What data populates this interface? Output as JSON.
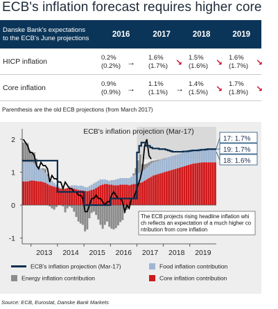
{
  "title": "ECB's inflation forecast requires higher core",
  "table": {
    "header_label_line1": "Danske Bank's expectations",
    "header_label_line2": "to the ECB's June projections",
    "years": [
      "2016",
      "2017",
      "2018",
      "2019"
    ],
    "rows": [
      {
        "label": "HICP inflation",
        "cells": [
          {
            "new": "0.2%",
            "old": "(0.2%)",
            "arrow": "right"
          },
          {
            "new": "1.6%",
            "old": "(1.7%)",
            "arrow": "down"
          },
          {
            "new": "1.5%",
            "old": "(1.6%)",
            "arrow": "down"
          },
          {
            "new": "1.6%",
            "old": "(1.7%)",
            "arrow": "down"
          }
        ]
      },
      {
        "label": "Core inflation",
        "cells": [
          {
            "new": "0.9%",
            "old": "(0.9%)",
            "arrow": "right"
          },
          {
            "new": "1.1%",
            "old": "(1.1%)",
            "arrow": "right"
          },
          {
            "new": "1.4%",
            "old": "(1.5%)",
            "arrow": "down"
          },
          {
            "new": "1.7%",
            "old": "(1.8%)",
            "arrow": "down"
          }
        ]
      }
    ]
  },
  "note": "Parenthesis are the old ECB projections (from March 2017)",
  "source": "Source: ECB, Eurostat, Danske Bank Markets",
  "colors": {
    "header_bg": "#0b3558",
    "food": "#9fb6d3",
    "energy": "#8c8c8c",
    "core": "#d0191b",
    "projection_line": "#0b2e4f",
    "hicp_line": "#000000",
    "arrow_down": "#c8102e"
  },
  "chart_data": {
    "type": "bar",
    "title": "ECB's inflation projection (Mar-17)",
    "xlabel": "",
    "ylabel": "",
    "x_ticks": [
      "2013",
      "2014",
      "2015",
      "2016",
      "2017",
      "2018",
      "2019"
    ],
    "y_ticks": [
      "-1",
      "0",
      "1",
      "2"
    ],
    "ylim": [
      -1.1,
      2.1
    ],
    "grid": false,
    "legend_position": "bottom",
    "stacked": true,
    "x_start_month": "2012-09",
    "series": [
      {
        "name": "Core inflation contribution",
        "type": "bar",
        "values": [
          0.72,
          0.72,
          0.72,
          0.74,
          0.75,
          0.74,
          0.73,
          0.72,
          0.72,
          0.7,
          0.68,
          0.64,
          0.6,
          0.58,
          0.56,
          0.54,
          0.52,
          0.5,
          0.5,
          0.5,
          0.52,
          0.54,
          0.52,
          0.5,
          0.48,
          0.46,
          0.45,
          0.44,
          0.43,
          0.42,
          0.44,
          0.46,
          0.48,
          0.52,
          0.56,
          0.6,
          0.62,
          0.64,
          0.64,
          0.62,
          0.62,
          0.6,
          0.6,
          0.6,
          0.62,
          0.62,
          0.62,
          0.62,
          0.6,
          0.62,
          0.64,
          0.64,
          0.66,
          0.68,
          0.7,
          0.74,
          0.78,
          0.82,
          0.86,
          0.9,
          0.92,
          0.94,
          0.96,
          0.98,
          1.0,
          1.02,
          1.04,
          1.06,
          1.08,
          1.1,
          1.12,
          1.14,
          1.16,
          1.18,
          1.2,
          1.22,
          1.24,
          1.26,
          1.27,
          1.28,
          1.29,
          1.3,
          1.3,
          1.3,
          1.3,
          1.3,
          1.3,
          1.3
        ]
      },
      {
        "name": "Food inflation contribution",
        "type": "bar",
        "values": [
          0.58,
          0.58,
          0.58,
          0.56,
          0.54,
          0.52,
          0.48,
          0.44,
          0.4,
          0.36,
          0.3,
          0.26,
          0.2,
          0.16,
          0.12,
          0.08,
          0.04,
          0.02,
          0.0,
          -0.02,
          0.0,
          0.04,
          0.08,
          0.1,
          0.12,
          0.12,
          0.14,
          0.14,
          0.12,
          0.12,
          0.14,
          0.16,
          0.18,
          0.18,
          0.18,
          0.18,
          0.16,
          0.14,
          0.12,
          0.12,
          0.14,
          0.16,
          0.18,
          0.2,
          0.2,
          0.2,
          0.2,
          0.2,
          0.22,
          0.24,
          0.26,
          0.28,
          0.3,
          0.32,
          0.34,
          0.34,
          0.36,
          0.38,
          0.4,
          0.4,
          0.4,
          0.4,
          0.4,
          0.4,
          0.4,
          0.42,
          0.42,
          0.42,
          0.42,
          0.42,
          0.42,
          0.42,
          0.42,
          0.42,
          0.42,
          0.42,
          0.42,
          0.42,
          0.42,
          0.42,
          0.42,
          0.42,
          0.42,
          0.42,
          0.42,
          0.42,
          0.42,
          0.42
        ]
      },
      {
        "name": "Energy inflation contribution",
        "type": "bar",
        "values": [
          0.6,
          0.62,
          0.58,
          0.36,
          0.3,
          0.34,
          0.2,
          0.02,
          0.0,
          0.06,
          0.12,
          0.04,
          -0.04,
          -0.1,
          -0.14,
          -0.06,
          0.0,
          0.0,
          -0.04,
          -0.2,
          -0.1,
          -0.04,
          -0.08,
          -0.2,
          -0.36,
          -0.5,
          -0.56,
          -0.6,
          -0.8,
          -0.74,
          -0.4,
          -0.24,
          -0.2,
          -0.3,
          -0.44,
          -0.6,
          -0.72,
          -0.6,
          -0.5,
          -0.66,
          -0.72,
          -0.74,
          -0.7,
          -0.62,
          -0.52,
          -0.46,
          -0.24,
          -0.14,
          -0.06,
          0.0,
          0.06,
          0.2,
          0.4,
          0.54,
          0.2,
          0.16,
          0.12,
          0.1,
          0.08,
          0.05,
          0.04,
          0.04,
          0.02,
          0.02,
          0.02,
          0.0,
          0.0,
          0.0,
          0.0,
          0.0,
          0.0,
          0.0,
          0.0,
          0.0,
          0.0,
          0.0,
          0.0,
          0.0,
          0.0,
          0.0,
          0.0,
          0.0,
          0.0,
          0.0,
          0.0,
          0.0,
          0.0,
          0.0
        ]
      },
      {
        "name": "HICP inflation",
        "type": "line",
        "values": [
          2.0,
          1.9,
          1.8,
          1.6,
          1.6,
          1.5,
          1.2,
          1.1,
          1.3,
          1.2,
          1.2,
          1.1,
          0.7,
          0.9,
          0.8,
          0.8,
          0.7,
          0.7,
          0.5,
          0.7,
          0.6,
          0.5,
          0.5,
          0.4,
          0.4,
          0.3,
          0.3,
          0.2,
          -0.2,
          -0.2,
          0.0,
          0.2,
          0.2,
          0.3,
          0.2,
          0.2,
          0.1,
          0.0,
          0.1,
          0.1,
          0.3,
          0.4,
          0.3,
          0.2,
          0.2,
          0.1,
          -0.2,
          0.0,
          -0.1,
          0.2,
          0.2,
          0.4,
          0.6,
          0.8,
          1.1,
          1.8,
          2.0,
          1.5,
          1.4
        ]
      },
      {
        "name": "ECB's inflation projection (Mar-17)",
        "type": "step-line",
        "values": [
          1.35,
          1.35,
          1.35,
          1.35,
          1.35,
          1.35,
          1.35,
          1.35,
          1.35,
          1.35,
          1.35,
          1.35,
          1.35,
          1.35,
          1.35,
          1.35,
          0.4,
          0.4,
          0.4,
          0.4,
          0.4,
          0.4,
          0.4,
          0.4,
          0.4,
          0.4,
          0.4,
          0.4,
          0.0,
          0.0,
          0.0,
          0.0,
          0.0,
          0.0,
          0.0,
          0.0,
          0.0,
          0.0,
          0.0,
          0.0,
          0.2,
          0.2,
          0.2,
          0.2,
          0.2,
          0.2,
          0.2,
          0.2,
          0.2,
          0.2,
          0.2,
          0.2,
          1.6,
          1.8,
          1.9,
          1.9,
          1.8,
          1.8,
          1.75,
          1.72,
          1.72,
          1.72,
          1.7,
          1.7,
          1.7,
          1.68,
          1.66,
          1.64,
          1.62,
          1.62,
          1.62,
          1.62,
          1.62,
          1.63,
          1.63,
          1.64,
          1.65,
          1.66,
          1.66,
          1.66,
          1.67,
          1.68,
          1.68,
          1.69,
          1.7,
          1.7,
          1.7,
          1.7
        ]
      }
    ],
    "projection_shading_start_month": 52,
    "end_labels": [
      "17: 1.7%",
      "19: 1.7%",
      "18: 1.6%"
    ],
    "annotation": "The ECB projects rising headline inflation which reflects an expectation of a much higher contribution from core inflation"
  },
  "legend": {
    "items": [
      {
        "label": "ECB's inflation projection (Mar-17)",
        "kind": "line"
      },
      {
        "label": "Food inflation contribution",
        "kind": "food"
      },
      {
        "label": "Energy inflation contribution",
        "kind": "energy"
      },
      {
        "label": "Core inflation contribution",
        "kind": "core"
      }
    ]
  }
}
